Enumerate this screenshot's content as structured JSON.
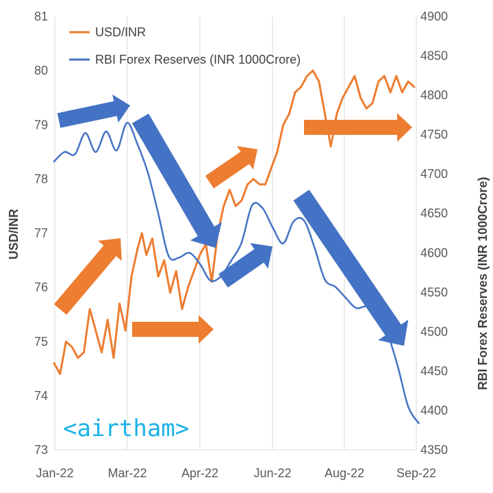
{
  "chart_data": {
    "type": "line",
    "title": "",
    "x_tick_labels": [
      "Jan-22",
      "Mar-22",
      "Apr-22",
      "Jun-22",
      "Aug-22",
      "Sep-22"
    ],
    "left_axis": {
      "label": "USD/INR",
      "range": [
        73,
        81
      ],
      "ticks": [
        "73",
        "74",
        "75",
        "76",
        "77",
        "78",
        "79",
        "80",
        "81"
      ]
    },
    "right_axis": {
      "label": "RBI Forex Reserves (INR 1000Crore)",
      "range": [
        4350,
        4900
      ],
      "ticks": [
        "4350",
        "4400",
        "4450",
        "4500",
        "4550",
        "4600",
        "4650",
        "4700",
        "4750",
        "4800",
        "4850",
        "4900"
      ]
    },
    "grid": "vertical",
    "legend_position": "top-left",
    "series": [
      {
        "name": "USD/INR",
        "axis": "left",
        "color": "#ed7d31",
        "points": [
          [
            "2022-01-01",
            74.6
          ],
          [
            "2022-01-05",
            74.4
          ],
          [
            "2022-01-09",
            75.0
          ],
          [
            "2022-01-13",
            74.9
          ],
          [
            "2022-01-17",
            74.7
          ],
          [
            "2022-01-21",
            74.8
          ],
          [
            "2022-01-25",
            75.6
          ],
          [
            "2022-01-29",
            75.2
          ],
          [
            "2022-02-02",
            74.8
          ],
          [
            "2022-02-06",
            75.4
          ],
          [
            "2022-02-10",
            74.7
          ],
          [
            "2022-02-14",
            75.7
          ],
          [
            "2022-02-18",
            75.2
          ],
          [
            "2022-02-22",
            76.2
          ],
          [
            "2022-02-26",
            76.7
          ],
          [
            "2022-03-01",
            77.0
          ],
          [
            "2022-03-04",
            76.6
          ],
          [
            "2022-03-08",
            76.9
          ],
          [
            "2022-03-12",
            76.2
          ],
          [
            "2022-03-16",
            76.5
          ],
          [
            "2022-03-20",
            75.9
          ],
          [
            "2022-03-24",
            76.3
          ],
          [
            "2022-03-28",
            75.6
          ],
          [
            "2022-04-01",
            76.0
          ],
          [
            "2022-04-05",
            76.3
          ],
          [
            "2022-04-09",
            76.6
          ],
          [
            "2022-04-13",
            76.8
          ],
          [
            "2022-04-17",
            76.1
          ],
          [
            "2022-04-21",
            77.0
          ],
          [
            "2022-04-25",
            77.5
          ],
          [
            "2022-04-29",
            77.8
          ],
          [
            "2022-05-03",
            77.5
          ],
          [
            "2022-05-07",
            77.6
          ],
          [
            "2022-05-11",
            77.9
          ],
          [
            "2022-05-15",
            78.0
          ],
          [
            "2022-05-19",
            77.9
          ],
          [
            "2022-05-23",
            77.9
          ],
          [
            "2022-05-27",
            78.2
          ],
          [
            "2022-05-31",
            78.5
          ],
          [
            "2022-06-04",
            79.0
          ],
          [
            "2022-06-08",
            79.2
          ],
          [
            "2022-06-12",
            79.6
          ],
          [
            "2022-06-16",
            79.7
          ],
          [
            "2022-06-20",
            79.9
          ],
          [
            "2022-06-24",
            80.0
          ],
          [
            "2022-06-28",
            79.8
          ],
          [
            "2022-07-02",
            79.2
          ],
          [
            "2022-07-06",
            78.6
          ],
          [
            "2022-07-10",
            79.2
          ],
          [
            "2022-07-14",
            79.5
          ],
          [
            "2022-07-18",
            79.7
          ],
          [
            "2022-07-22",
            79.9
          ],
          [
            "2022-07-26",
            79.5
          ],
          [
            "2022-07-30",
            79.3
          ],
          [
            "2022-08-03",
            79.4
          ],
          [
            "2022-08-07",
            79.8
          ],
          [
            "2022-08-11",
            79.9
          ],
          [
            "2022-08-15",
            79.6
          ],
          [
            "2022-08-19",
            79.9
          ],
          [
            "2022-08-23",
            79.6
          ],
          [
            "2022-08-27",
            79.8
          ],
          [
            "2022-08-31",
            79.7
          ]
        ]
      },
      {
        "name": "RBI Forex Reserves (INR 1000Crore)",
        "axis": "right",
        "color": "#4472c4",
        "points": [
          [
            "2022-01-01",
            4716
          ],
          [
            "2022-01-08",
            4728
          ],
          [
            "2022-01-15",
            4725
          ],
          [
            "2022-01-22",
            4752
          ],
          [
            "2022-01-29",
            4728
          ],
          [
            "2022-02-05",
            4754
          ],
          [
            "2022-02-12",
            4730
          ],
          [
            "2022-02-19",
            4765
          ],
          [
            "2022-02-26",
            4738
          ],
          [
            "2022-03-05",
            4702
          ],
          [
            "2022-03-12",
            4650
          ],
          [
            "2022-03-19",
            4596
          ],
          [
            "2022-03-26",
            4594
          ],
          [
            "2022-04-02",
            4600
          ],
          [
            "2022-04-09",
            4586
          ],
          [
            "2022-04-16",
            4565
          ],
          [
            "2022-04-23",
            4570
          ],
          [
            "2022-04-30",
            4590
          ],
          [
            "2022-05-07",
            4613
          ],
          [
            "2022-05-14",
            4660
          ],
          [
            "2022-05-21",
            4657
          ],
          [
            "2022-05-28",
            4632
          ],
          [
            "2022-06-04",
            4612
          ],
          [
            "2022-06-11",
            4640
          ],
          [
            "2022-06-18",
            4641
          ],
          [
            "2022-06-25",
            4607
          ],
          [
            "2022-07-02",
            4566
          ],
          [
            "2022-07-09",
            4557
          ],
          [
            "2022-07-16",
            4543
          ],
          [
            "2022-07-23",
            4530
          ],
          [
            "2022-07-30",
            4532
          ],
          [
            "2022-08-06",
            4524
          ],
          [
            "2022-08-13",
            4498
          ],
          [
            "2022-08-20",
            4456
          ],
          [
            "2022-08-27",
            4405
          ],
          [
            "2022-09-03",
            4384
          ]
        ]
      }
    ],
    "annotations": [
      {
        "shape": "arrow",
        "color": "#4472c4",
        "direction": "up-right"
      },
      {
        "shape": "arrow",
        "color": "#4472c4",
        "direction": "down-right"
      },
      {
        "shape": "arrow",
        "color": "#4472c4",
        "direction": "up-right"
      },
      {
        "shape": "arrow",
        "color": "#4472c4",
        "direction": "down-right"
      },
      {
        "shape": "arrow",
        "color": "#ed7d31",
        "direction": "up-right"
      },
      {
        "shape": "arrow",
        "color": "#ed7d31",
        "direction": "right"
      },
      {
        "shape": "arrow",
        "color": "#ed7d31",
        "direction": "up-right"
      },
      {
        "shape": "arrow",
        "color": "#ed7d31",
        "direction": "right"
      }
    ]
  },
  "watermark": {
    "text": "<airtham>"
  }
}
